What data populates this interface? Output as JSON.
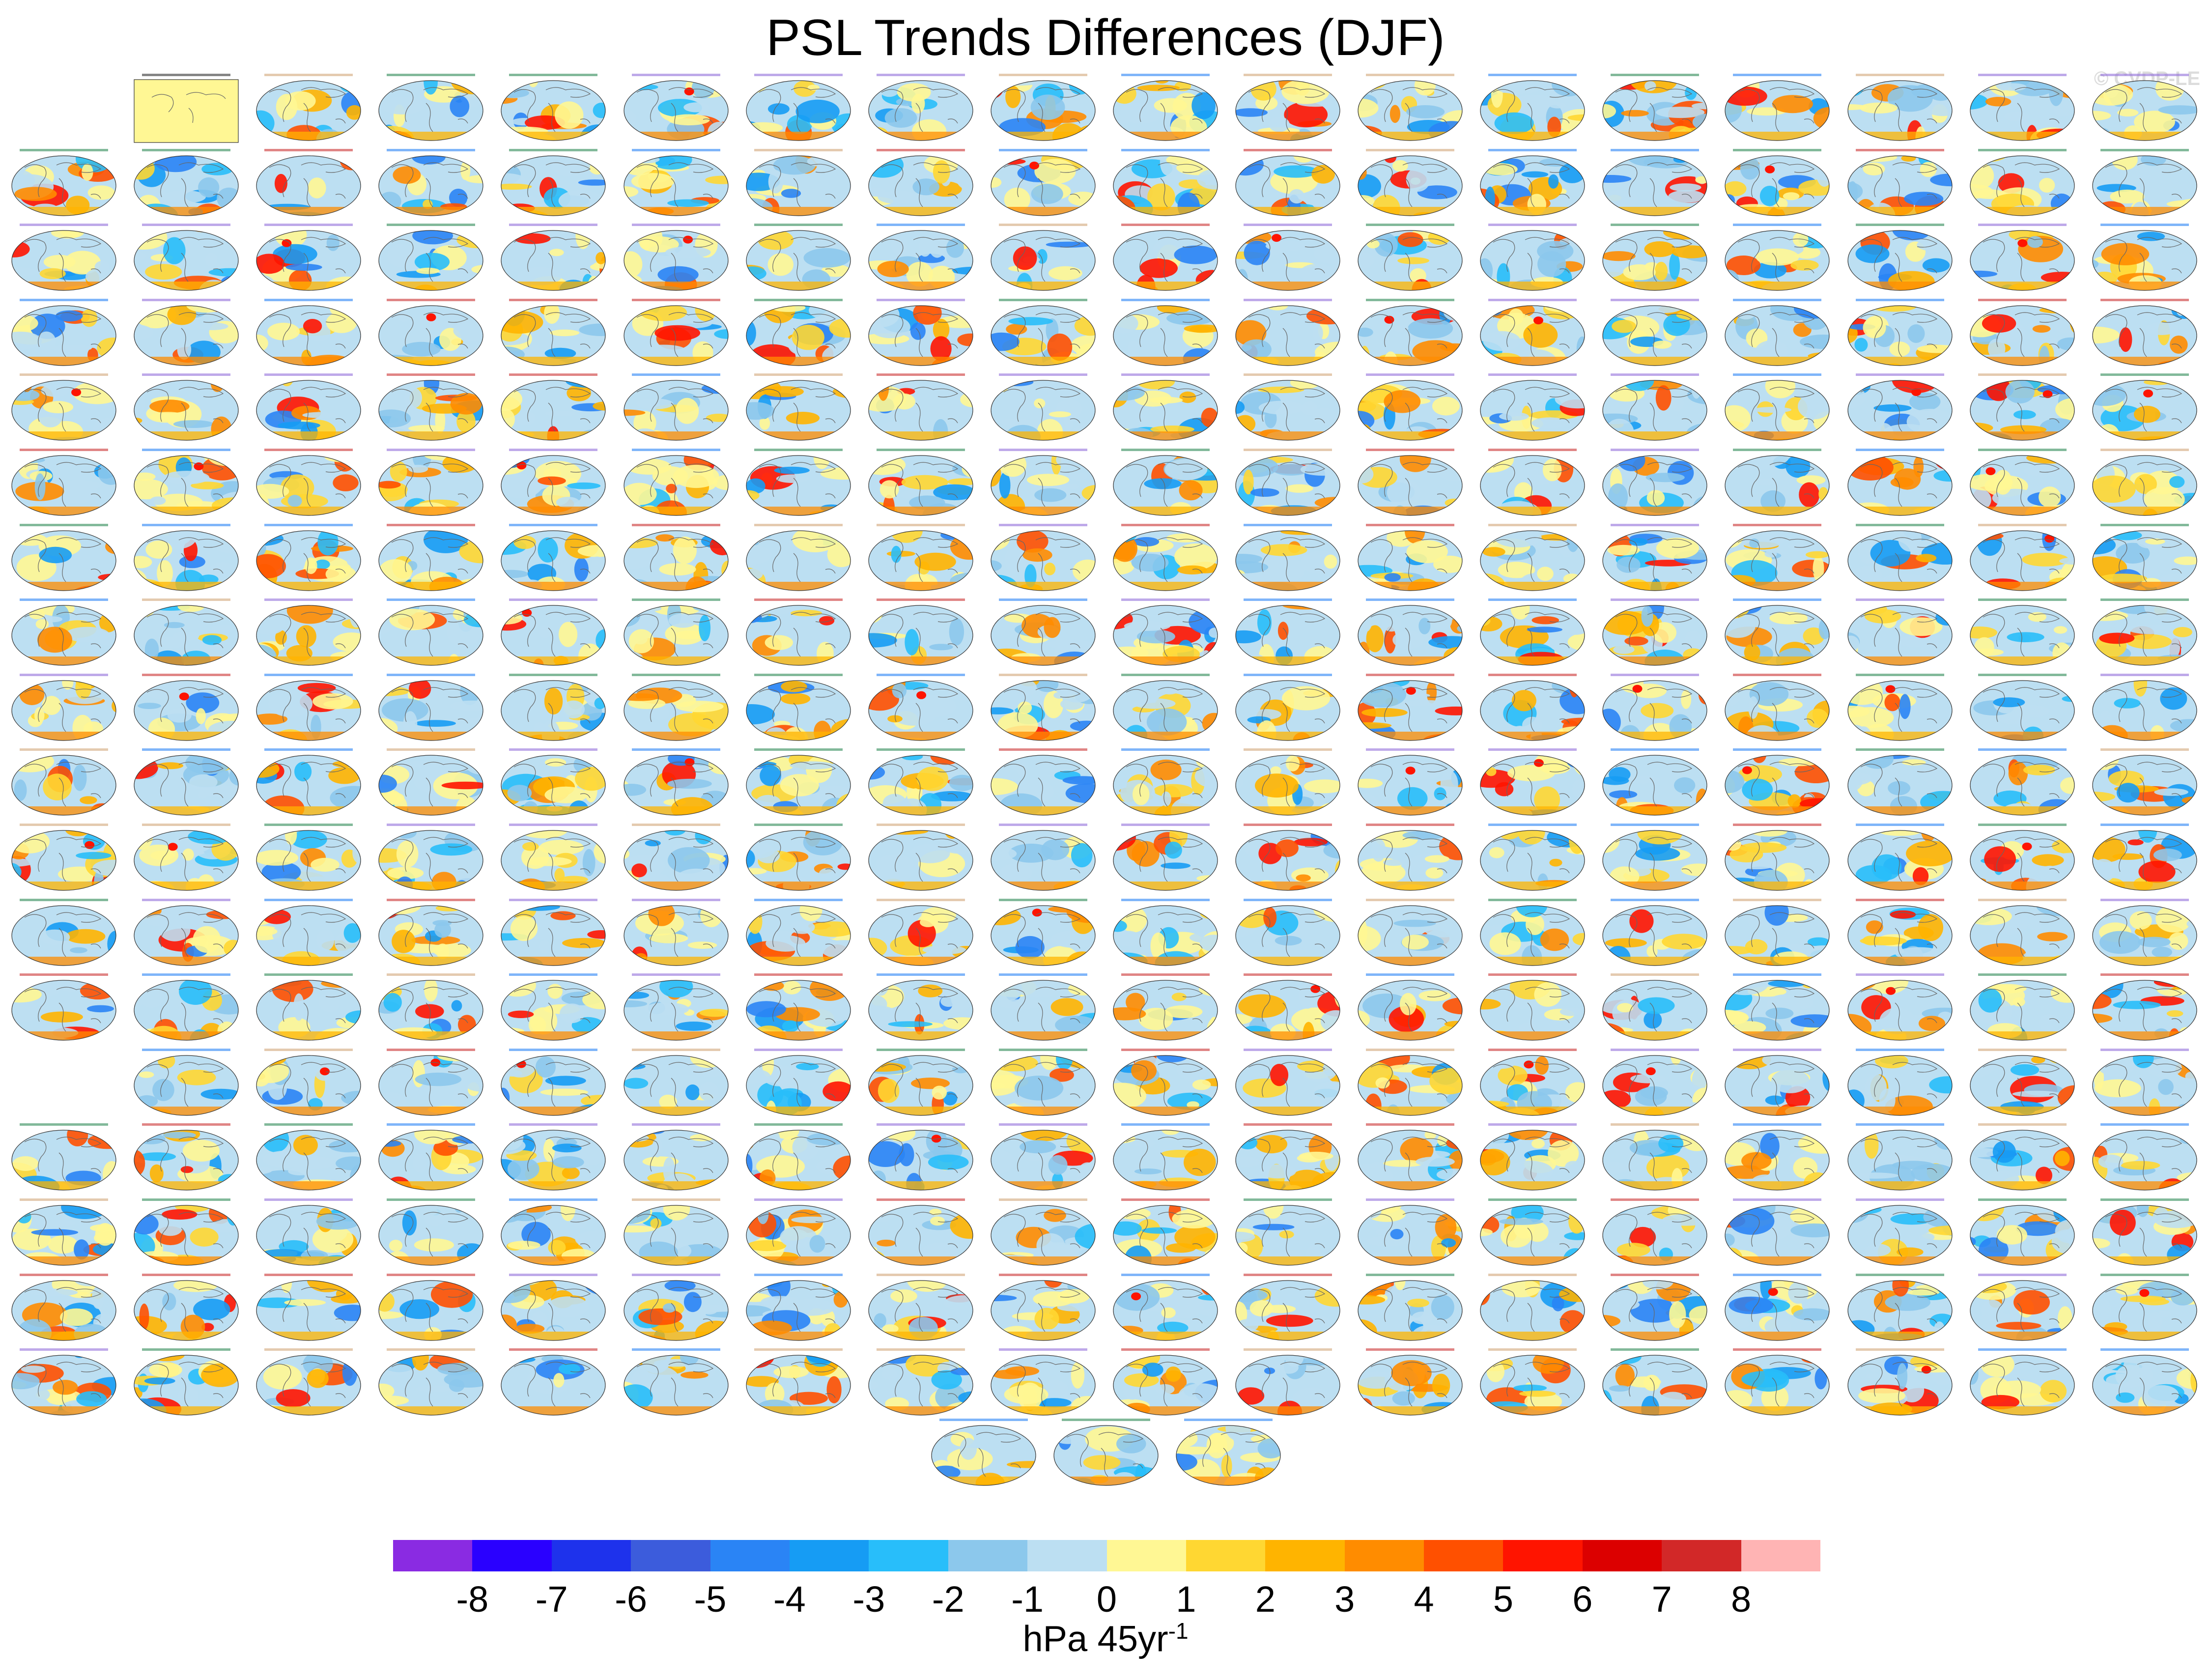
{
  "figure": {
    "title": "PSL Trends Differences (DJF)",
    "watermark": "© CVDP-LE",
    "units_base": "hPa 45yr",
    "units_exp": "-1"
  },
  "map_grid": {
    "rows": 18,
    "cols": 18,
    "empty_slots": [
      "r0c0",
      "r13c0"
    ],
    "first_panel_note": "observations panel in yellow",
    "extra_bottom_row_panels": 3
  },
  "chart_data": {
    "type": "heatmap",
    "title": "PSL Trends Differences (DJF)",
    "colorbar": {
      "levels": [
        -8,
        -7,
        -6,
        -5,
        -4,
        -3,
        -2,
        -1,
        0,
        1,
        2,
        3,
        4,
        5,
        6,
        7,
        8
      ],
      "colors": [
        "#8a2be2",
        "#2a00ff",
        "#1e32ec",
        "#3c5cdc",
        "#2a84f5",
        "#169cf4",
        "#28befa",
        "#8cc8ec",
        "#bcdff2",
        "#fff794",
        "#ffd732",
        "#ffb400",
        "#ff8c00",
        "#ff5000",
        "#ff1400",
        "#dc0000",
        "#d22828",
        "#ffb4b4"
      ],
      "units": "hPa 45yr-1"
    }
  }
}
